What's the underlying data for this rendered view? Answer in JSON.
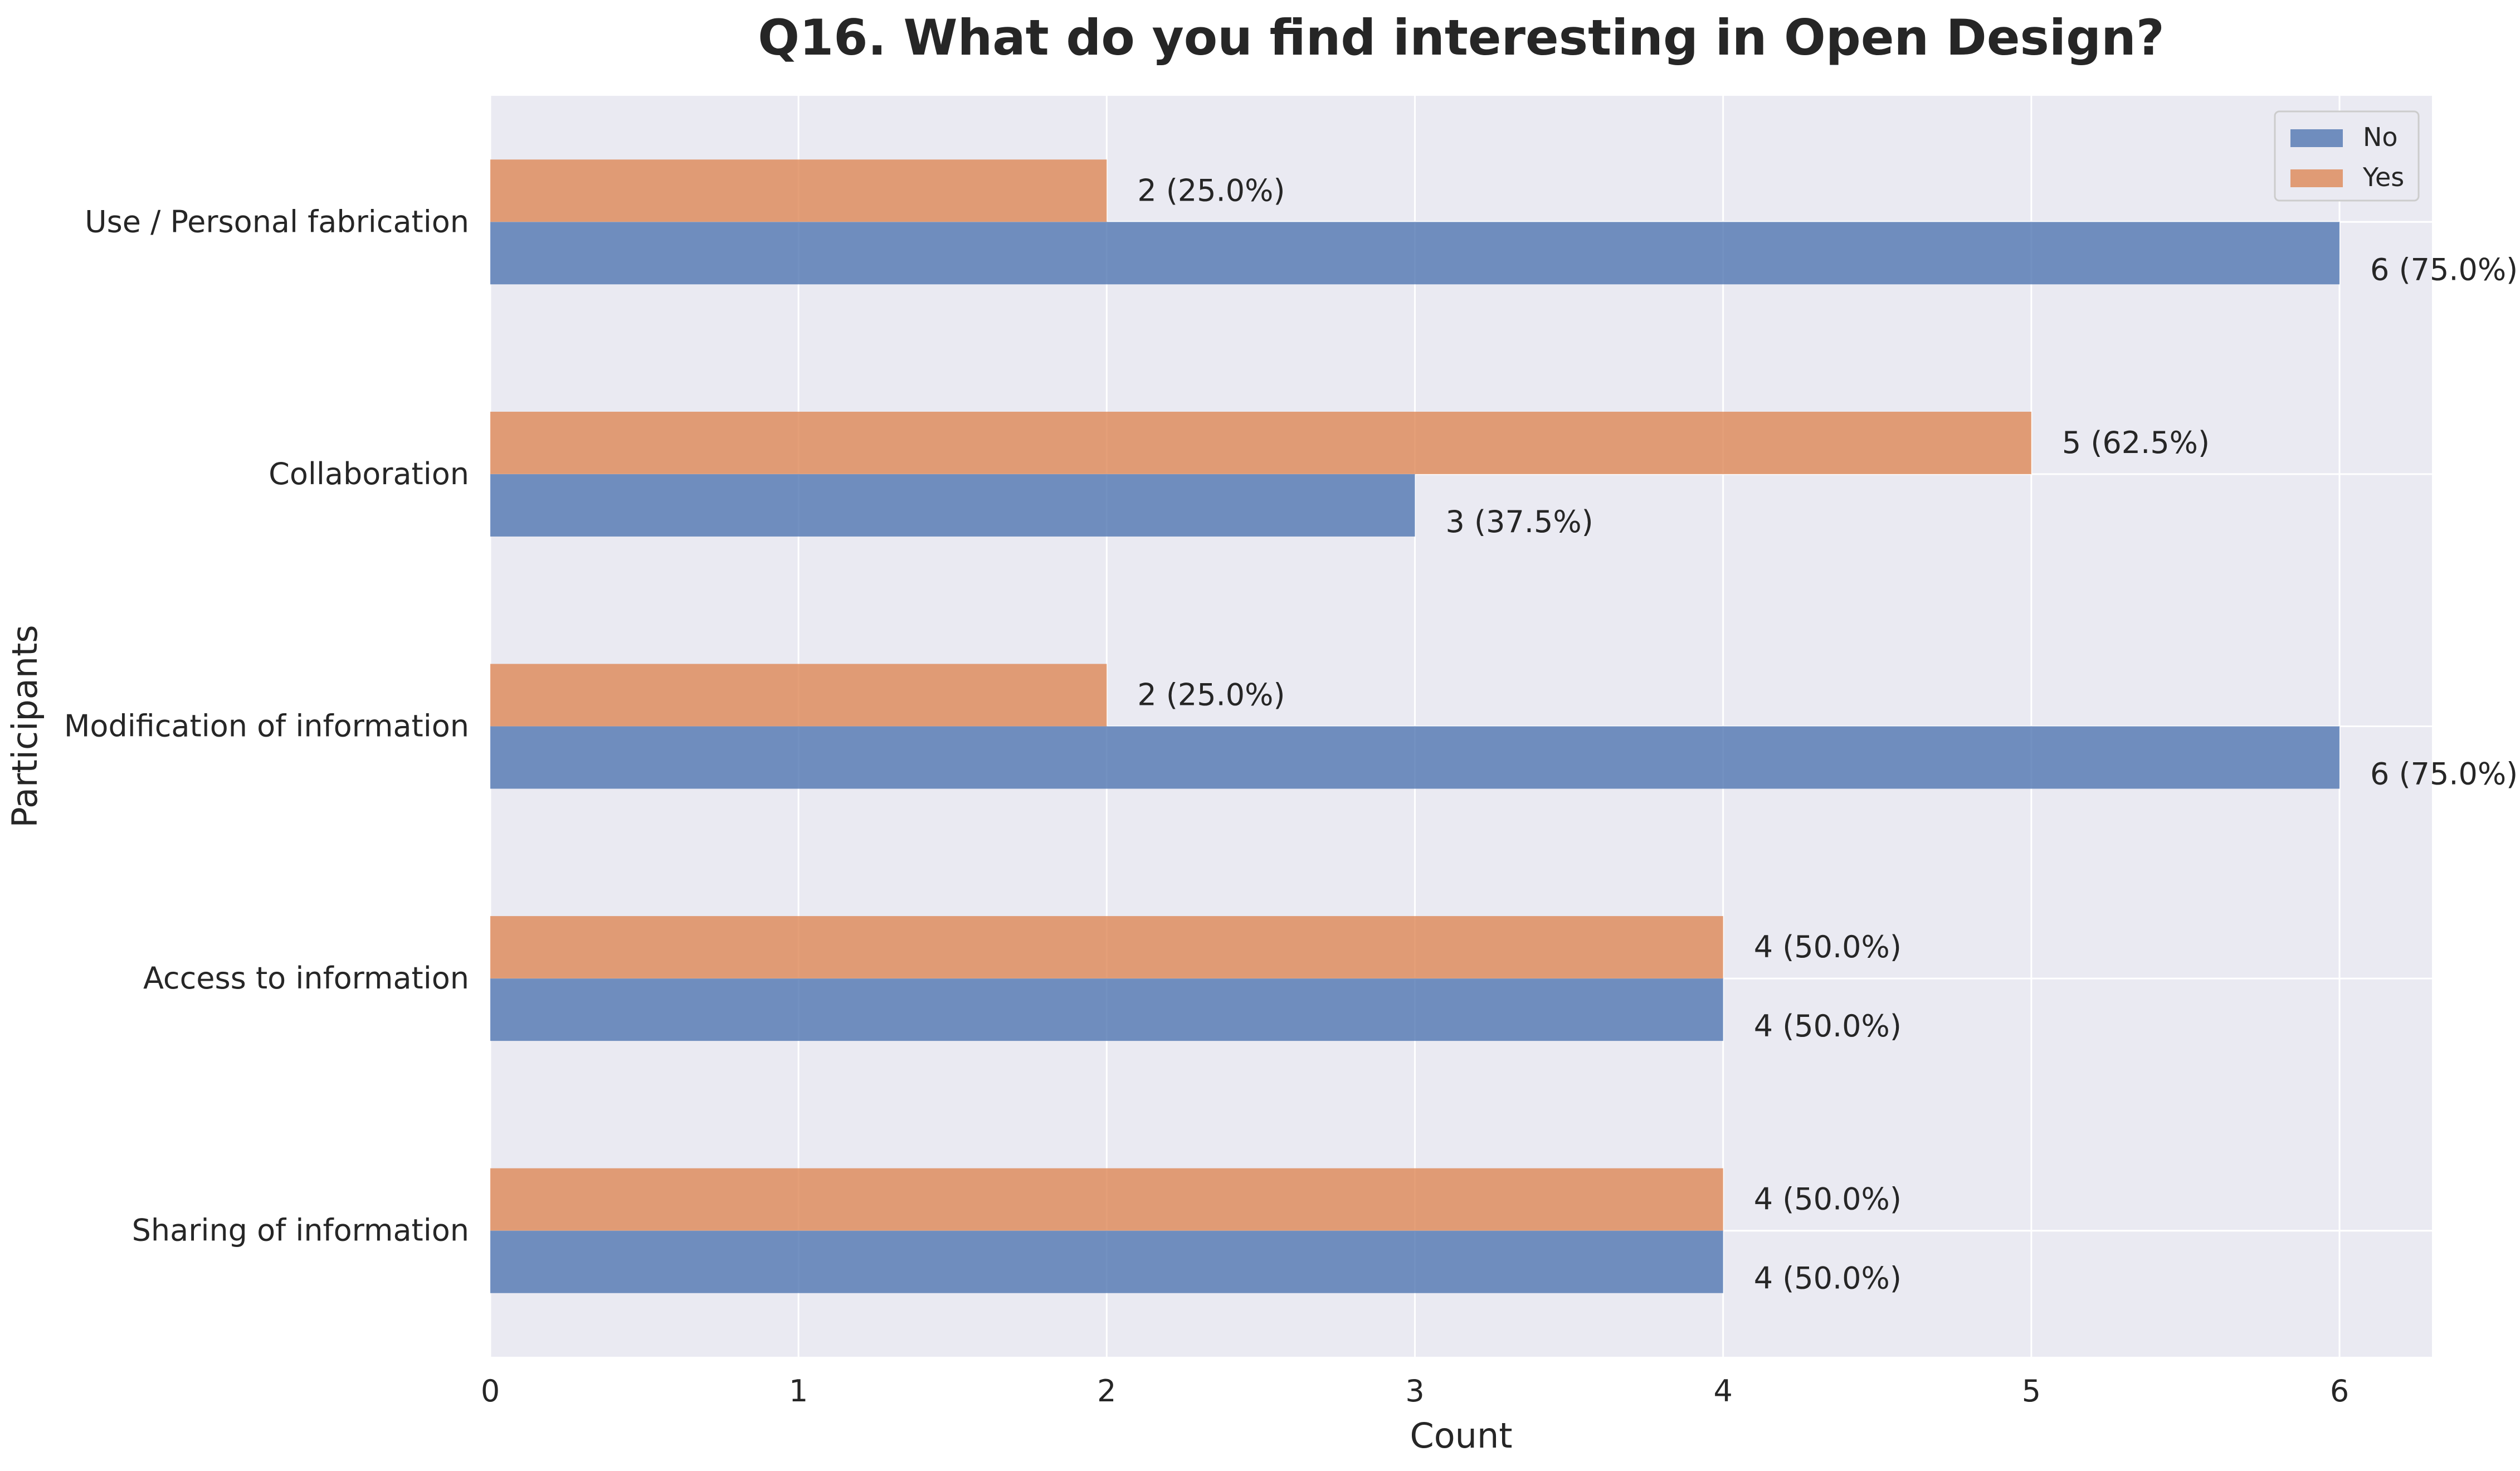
{
  "chart_data": {
    "type": "bar",
    "orientation": "horizontal",
    "title": "Q16. What do you find interesting in Open Design?",
    "xlabel": "Count",
    "ylabel": "Participants",
    "categories": [
      "Use / Personal fabrication",
      "Collaboration",
      "Modification of information",
      "Access to information",
      "Sharing of information"
    ],
    "series": [
      {
        "name": "No",
        "color": "#4c72b0",
        "values": [
          6,
          3,
          6,
          4,
          4
        ],
        "labels": [
          "6 (75.0%)",
          "3 (37.5%)",
          "6 (75.0%)",
          "4 (50.0%)",
          "4 (50.0%)"
        ]
      },
      {
        "name": "Yes",
        "color": "#dd8452",
        "values": [
          2,
          5,
          2,
          4,
          4
        ],
        "labels": [
          "2 (25.0%)",
          "5 (62.5%)",
          "2 (25.0%)",
          "4 (50.0%)",
          "4 (50.0%)"
        ]
      }
    ],
    "xlim": [
      0,
      6.3
    ],
    "xticks": [
      "0",
      "1",
      "2",
      "3",
      "4",
      "5",
      "6"
    ],
    "grid": true,
    "legend_position": "top-right",
    "background_color": "#eaeaf2"
  }
}
